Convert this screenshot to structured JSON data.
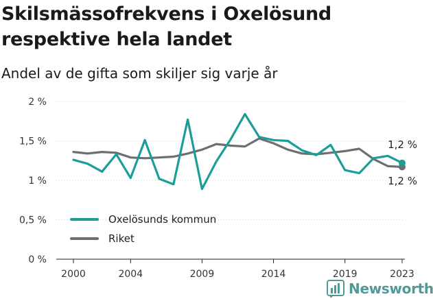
{
  "title": "Skilsmässofrekvens i Oxelösund respektive hela landet",
  "subtitle": "Andel av de gifta som skiljer sig varje år",
  "brand": "Newsworthy",
  "colors": {
    "oxelosund": "#1a9e97",
    "riket": "#6e6e72",
    "grid": "#cccccc",
    "brand": "#4e9a96"
  },
  "chart_data": {
    "type": "line",
    "ylim": [
      0,
      2
    ],
    "yticks": [
      0,
      0.5,
      1,
      1.5,
      2
    ],
    "ytick_labels": [
      "0 %",
      "0,5 %",
      "1 %",
      "1,5 %",
      "2 %"
    ],
    "xticks": [
      2000,
      2004,
      2009,
      2014,
      2019,
      2023
    ],
    "xtick_labels": [
      "2000",
      "2004",
      "2009",
      "2014",
      "2019",
      "2023"
    ],
    "x": [
      2000,
      2001,
      2002,
      2003,
      2004,
      2005,
      2006,
      2007,
      2008,
      2009,
      2010,
      2011,
      2012,
      2013,
      2014,
      2015,
      2016,
      2017,
      2018,
      2019,
      2020,
      2021,
      2022,
      2023
    ],
    "grid": "horizontal",
    "legend_position": "bottom-left",
    "series": [
      {
        "name": "Oxelösunds kommun",
        "color": "#1a9e97",
        "values": [
          1.26,
          1.21,
          1.11,
          1.33,
          1.03,
          1.51,
          1.02,
          0.95,
          1.77,
          0.89,
          1.24,
          1.52,
          1.84,
          1.55,
          1.51,
          1.5,
          1.38,
          1.32,
          1.45,
          1.13,
          1.09,
          1.28,
          1.31,
          1.22
        ],
        "end_label": "1,2 %"
      },
      {
        "name": "Riket",
        "color": "#6e6e72",
        "values": [
          1.36,
          1.34,
          1.36,
          1.35,
          1.29,
          1.28,
          1.29,
          1.3,
          1.34,
          1.39,
          1.46,
          1.44,
          1.43,
          1.53,
          1.47,
          1.39,
          1.34,
          1.33,
          1.35,
          1.37,
          1.4,
          1.27,
          1.18,
          1.17
        ],
        "end_label": "1,2 %"
      }
    ]
  }
}
